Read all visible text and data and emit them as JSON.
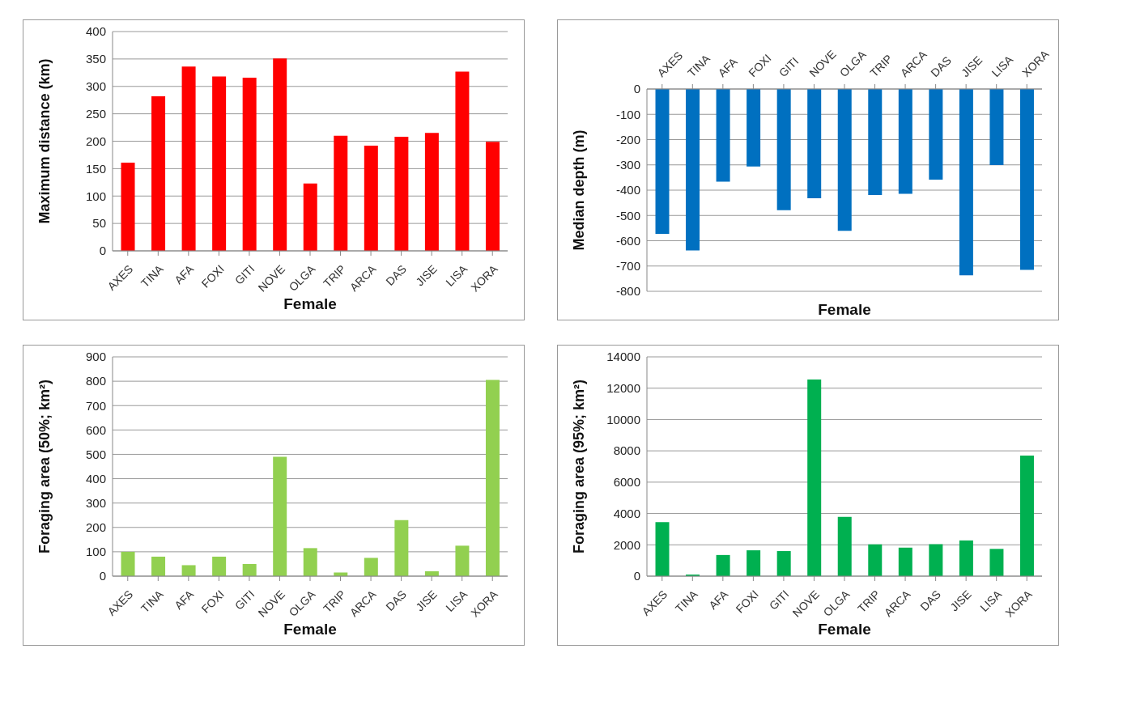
{
  "chart_data": [
    {
      "type": "bar",
      "xlabel": "Female",
      "ylabel": "Maximum distance (km)",
      "categories": [
        "AXES",
        "TINA",
        "AFA",
        "FOXI",
        "GITI",
        "NOVE",
        "OLGA",
        "TRIP",
        "ARCA",
        "DAS",
        "JISE",
        "LISA",
        "XORA"
      ],
      "values": [
        161,
        282,
        336,
        318,
        316,
        351,
        123,
        210,
        192,
        208,
        215,
        327,
        199
      ],
      "color": "#ff0000",
      "ylim": [
        0,
        400
      ],
      "yticks": [
        0,
        50,
        100,
        150,
        200,
        250,
        300,
        350,
        400
      ],
      "grid": "y",
      "legend": false
    },
    {
      "type": "bar",
      "xlabel": "Female",
      "ylabel": "Median depth (m)",
      "categories": [
        "AXES",
        "TINA",
        "AFA",
        "FOXI",
        "GITI",
        "NOVE",
        "OLGA",
        "TRIP",
        "ARCA",
        "DAS",
        "JISE",
        "LISA",
        "XORA"
      ],
      "values": [
        -573,
        -638,
        -366,
        -306,
        -479,
        -432,
        -561,
        -419,
        -414,
        -358,
        -737,
        -301,
        -715
      ],
      "color": "#0070c0",
      "ylim": [
        -800,
        0
      ],
      "yticks": [
        -800,
        -700,
        -600,
        -500,
        -400,
        -300,
        -200,
        -100,
        0
      ],
      "grid": "y",
      "legend": false
    },
    {
      "type": "bar",
      "xlabel": "Female",
      "ylabel": "Foraging area (50%; km²)",
      "categories": [
        "AXES",
        "TINA",
        "AFA",
        "FOXI",
        "GITI",
        "NOVE",
        "OLGA",
        "TRIP",
        "ARCA",
        "DAS",
        "JISE",
        "LISA",
        "XORA"
      ],
      "values": [
        100,
        80,
        45,
        80,
        50,
        490,
        115,
        15,
        75,
        230,
        20,
        125,
        805
      ],
      "color": "#92d050",
      "ylim": [
        0,
        900
      ],
      "yticks": [
        0,
        100,
        200,
        300,
        400,
        500,
        600,
        700,
        800,
        900
      ],
      "grid": "y",
      "legend": false
    },
    {
      "type": "bar",
      "xlabel": "Female",
      "ylabel": "Foraging area (95%; km²)",
      "categories": [
        "AXES",
        "TINA",
        "AFA",
        "FOXI",
        "GITI",
        "NOVE",
        "OLGA",
        "TRIP",
        "ARCA",
        "DAS",
        "JISE",
        "LISA",
        "XORA"
      ],
      "values": [
        3450,
        100,
        1350,
        1650,
        1600,
        12550,
        3780,
        2030,
        1820,
        2040,
        2280,
        1740,
        7700
      ],
      "color": "#00b050",
      "ylim": [
        0,
        14000
      ],
      "yticks": [
        0,
        2000,
        4000,
        6000,
        8000,
        10000,
        12000,
        14000
      ],
      "grid": "y",
      "legend": false
    }
  ]
}
